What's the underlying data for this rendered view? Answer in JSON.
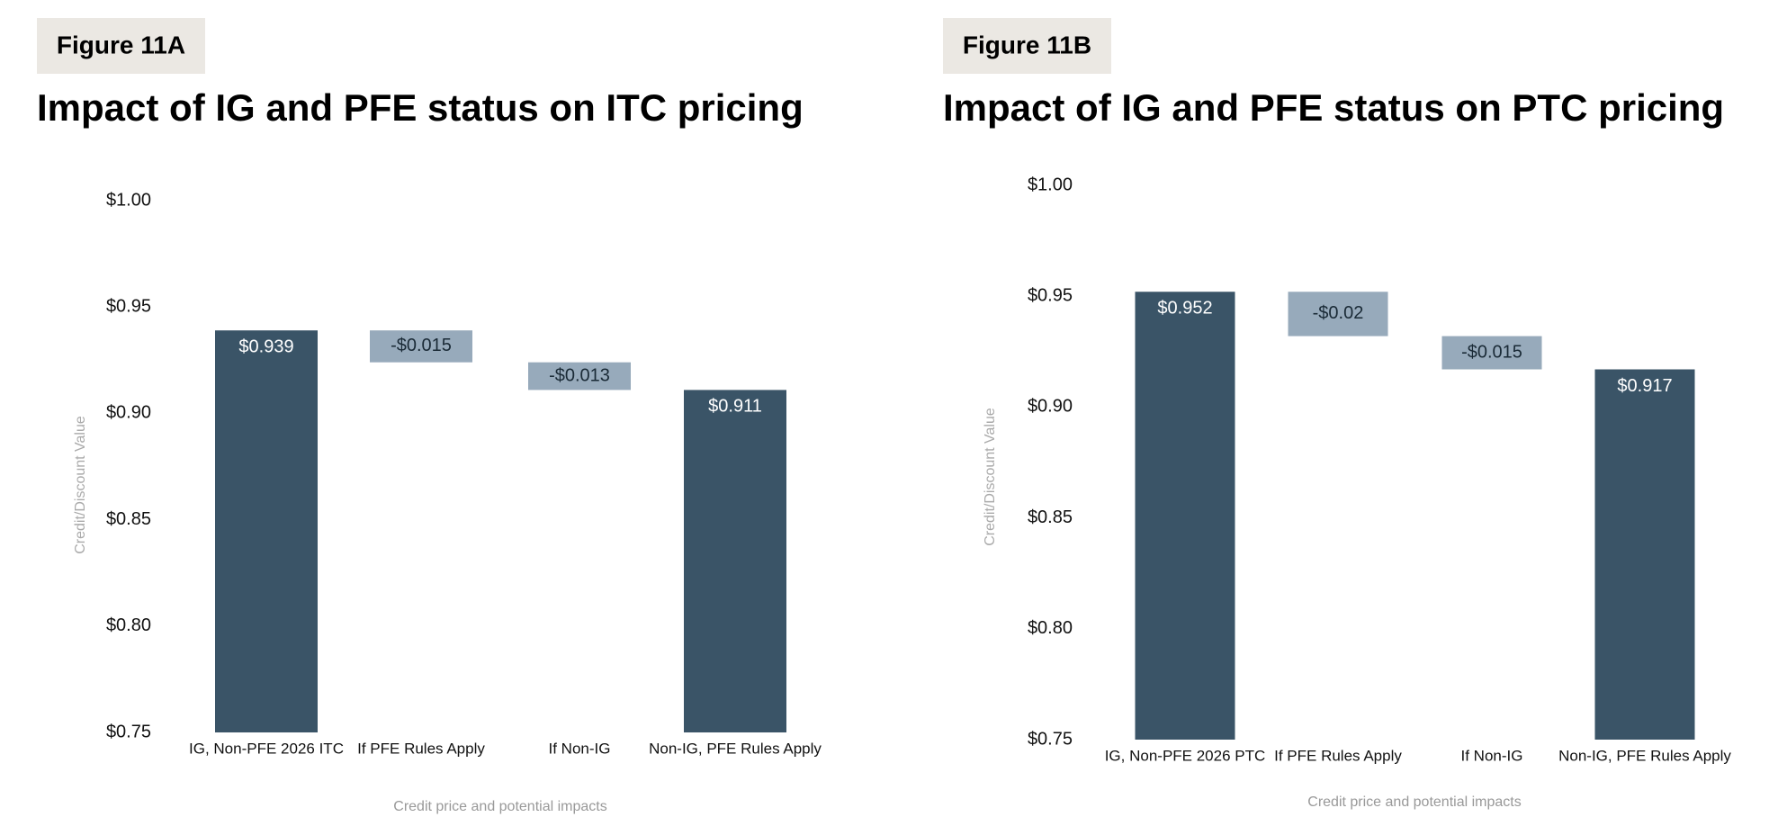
{
  "chart_data": [
    {
      "type": "waterfall",
      "label": "Figure 11A",
      "title": "Impact of IG and PFE status on ITC pricing",
      "x_label": "Credit price and potential impacts",
      "y_label": "Credit/Discount Value",
      "categories": [
        "IG, Non-PFE 2026 ITC",
        "If PFE Rules Apply",
        "If Non-IG",
        "Non-IG, PFE Rules Apply"
      ],
      "values": [
        0.939,
        -0.015,
        -0.013,
        0.911
      ],
      "value_labels": [
        "$0.939",
        "-$0.015",
        "-$0.013",
        "$0.911"
      ],
      "measure": [
        "total",
        "relative",
        "relative",
        "total"
      ],
      "total_color": "#3a5467",
      "delta_color": "#97aabb",
      "ylim": [
        0.75,
        1.0
      ],
      "yticks": [
        {
          "value": 0.75,
          "label": "$0.75"
        },
        {
          "value": 0.8,
          "label": "$0.80"
        },
        {
          "value": 0.85,
          "label": "$0.85"
        },
        {
          "value": 0.9,
          "label": "$0.90"
        },
        {
          "value": 0.95,
          "label": "$0.95"
        },
        {
          "value": 1.0,
          "label": "$1.00"
        }
      ],
      "grid": false
    },
    {
      "type": "waterfall",
      "label": "Figure 11B",
      "title": "Impact of IG and PFE status on PTC pricing",
      "x_label": "Credit price and potential impacts",
      "y_label": "Credit/Discount Value",
      "categories": [
        "IG, Non-PFE 2026 PTC",
        "If PFE Rules Apply",
        "If Non-IG",
        "Non-IG, PFE Rules Apply"
      ],
      "values": [
        0.952,
        -0.02,
        -0.015,
        0.917
      ],
      "value_labels": [
        "$0.952",
        "-$0.02",
        "-$0.015",
        "$0.917"
      ],
      "measure": [
        "total",
        "relative",
        "relative",
        "total"
      ],
      "total_color": "#3a5467",
      "delta_color": "#97aabb",
      "ylim": [
        0.75,
        1.0
      ],
      "yticks": [
        {
          "value": 0.75,
          "label": "$0.75"
        },
        {
          "value": 0.8,
          "label": "$0.80"
        },
        {
          "value": 0.85,
          "label": "$0.85"
        },
        {
          "value": 0.9,
          "label": "$0.90"
        },
        {
          "value": 0.95,
          "label": "$0.95"
        },
        {
          "value": 1.0,
          "label": "$1.00"
        }
      ],
      "grid": false
    }
  ]
}
